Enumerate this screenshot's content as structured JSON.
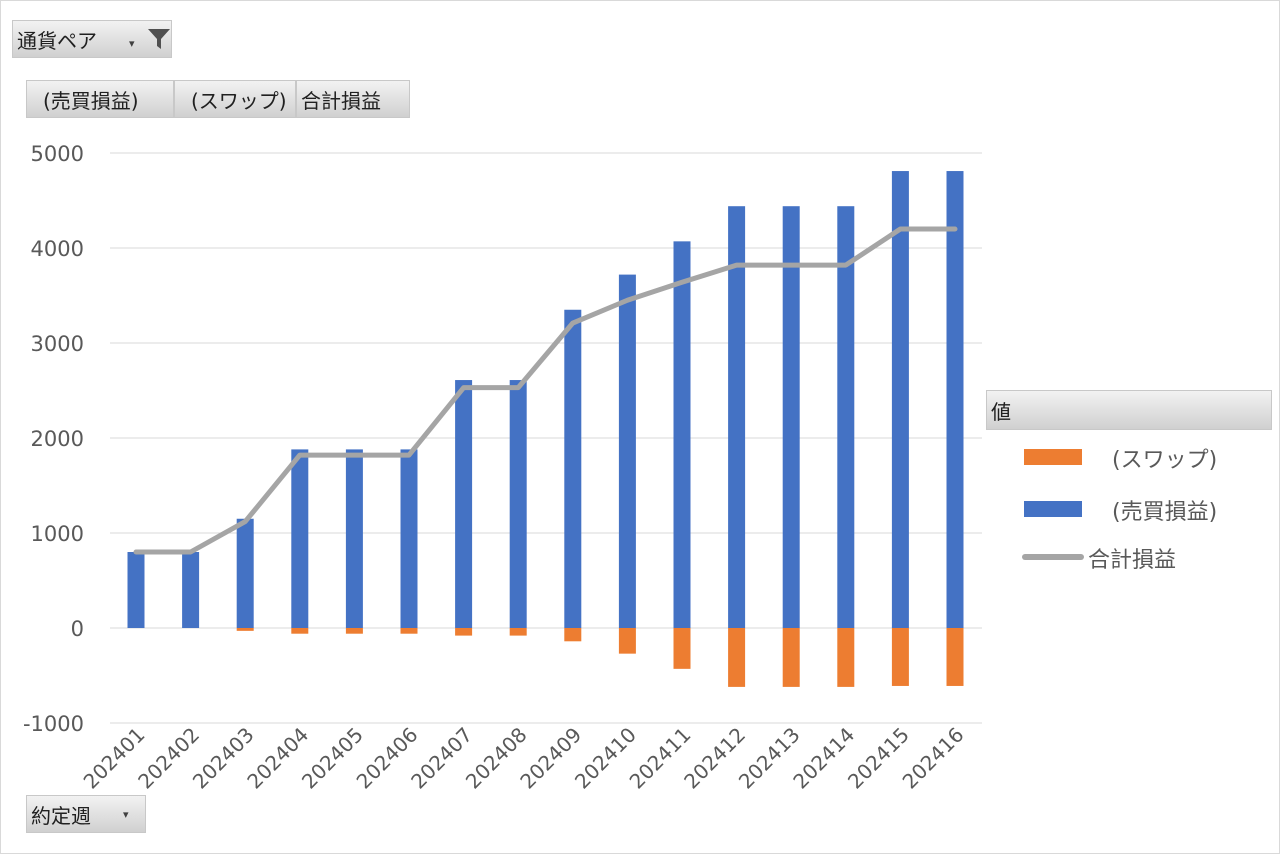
{
  "filter_field": {
    "label": "通貨ペア",
    "icon": "funnel-icon"
  },
  "value_fields": [
    "(売買損益)",
    "(スワップ)",
    "合計損益"
  ],
  "axis_field": {
    "label": "約定週",
    "icon": "dropdown-arrow-icon"
  },
  "legend": {
    "title": "値",
    "items": [
      {
        "label": "(スワップ)",
        "color": "#ED7D31",
        "kind": "bar"
      },
      {
        "label": "(売買損益)",
        "color": "#4472C4",
        "kind": "bar"
      },
      {
        "label": "合計損益",
        "color": "#A5A5A5",
        "kind": "line"
      }
    ]
  },
  "chart_data": {
    "type": "bar",
    "stacked": true,
    "categories": [
      "202401",
      "202402",
      "202403",
      "202404",
      "202405",
      "202406",
      "202407",
      "202408",
      "202409",
      "202410",
      "202411",
      "202412",
      "202413",
      "202414",
      "202415",
      "202416"
    ],
    "series": [
      {
        "name": "(売買損益)",
        "type": "bar",
        "color": "#4472C4",
        "values": [
          800,
          800,
          1150,
          1880,
          1880,
          1880,
          2610,
          2610,
          3350,
          3720,
          4070,
          4440,
          4440,
          4440,
          4810,
          4810
        ]
      },
      {
        "name": "(スワップ)",
        "type": "bar",
        "color": "#ED7D31",
        "values": [
          0,
          0,
          -30,
          -60,
          -60,
          -60,
          -80,
          -80,
          -140,
          -270,
          -430,
          -620,
          -620,
          -620,
          -610,
          -610
        ]
      },
      {
        "name": "合計損益",
        "type": "line",
        "color": "#A5A5A5",
        "values": [
          800,
          800,
          1120,
          1820,
          1820,
          1820,
          2530,
          2530,
          3210,
          3450,
          3640,
          3820,
          3820,
          3820,
          4200,
          4200
        ]
      }
    ],
    "ylim": [
      -1000,
      5000
    ],
    "yticks": [
      -1000,
      0,
      1000,
      2000,
      3000,
      4000,
      5000
    ],
    "grid": true,
    "legend_position": "right"
  }
}
